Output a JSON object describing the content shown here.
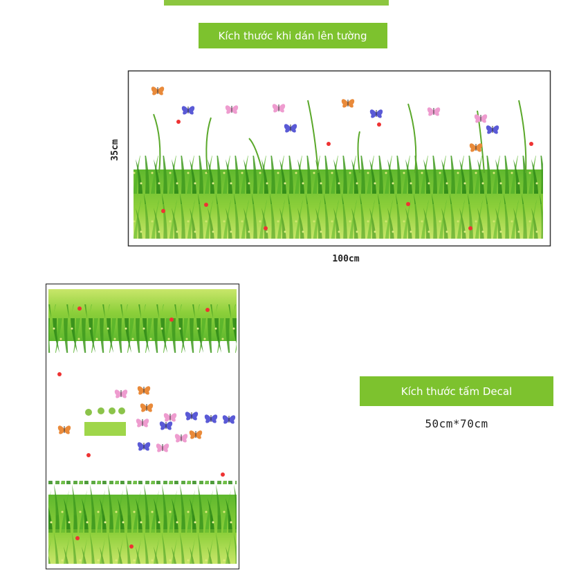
{
  "wall_size": {
    "label": "Kích thước khi dán lên tường",
    "height": "35cm",
    "width": "100cm"
  },
  "decal_size": {
    "label": "Kích thước tấm Decal",
    "dimensions": "50cm*70cm"
  }
}
